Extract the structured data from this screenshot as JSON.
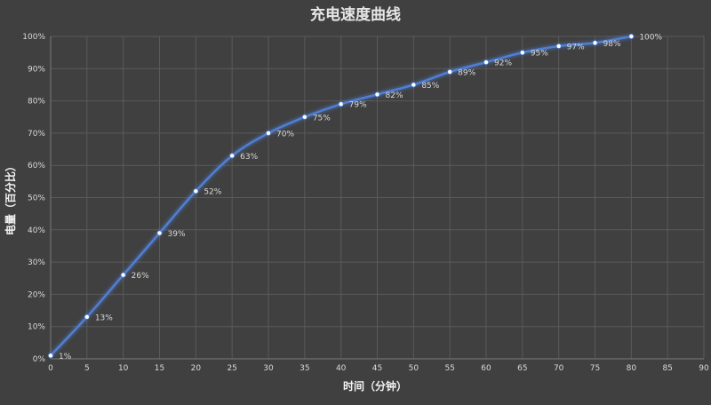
{
  "chart_data": {
    "type": "line",
    "title": "充电速度曲线",
    "xlabel": "时间（分钟）",
    "ylabel": "电量（百分比）",
    "xlim": [
      0,
      90
    ],
    "ylim": [
      0,
      100
    ],
    "x_ticks": [
      "0",
      "5",
      "10",
      "15",
      "20",
      "25",
      "30",
      "35",
      "40",
      "45",
      "50",
      "55",
      "60",
      "65",
      "70",
      "75",
      "80",
      "85",
      "90"
    ],
    "y_ticks": [
      "0%",
      "10%",
      "20%",
      "30%",
      "40%",
      "50%",
      "60%",
      "70%",
      "80%",
      "90%",
      "100%"
    ],
    "grid": true,
    "smooth": true,
    "series": [
      {
        "x": [
          0,
          5,
          10,
          15,
          20,
          25,
          30,
          35,
          40,
          45,
          50,
          55,
          60,
          65,
          70,
          75,
          80
        ],
        "values": [
          1,
          13,
          26,
          39,
          52,
          63,
          70,
          75,
          79,
          82,
          85,
          89,
          92,
          95,
          97,
          98,
          100
        ],
        "labels": [
          "1%",
          "13%",
          "26%",
          "39%",
          "52%",
          "63%",
          "70%",
          "75%",
          "79%",
          "82%",
          "85%",
          "89%",
          "92%",
          "95%",
          "97%",
          "98%",
          "100%"
        ],
        "color": "#4f7fd6"
      }
    ],
    "colors": {
      "background": "#404040",
      "grid": "#5a5a5a",
      "text": "#d9d9d9",
      "line": "#4f7fd6",
      "marker": "#ffffff"
    }
  }
}
